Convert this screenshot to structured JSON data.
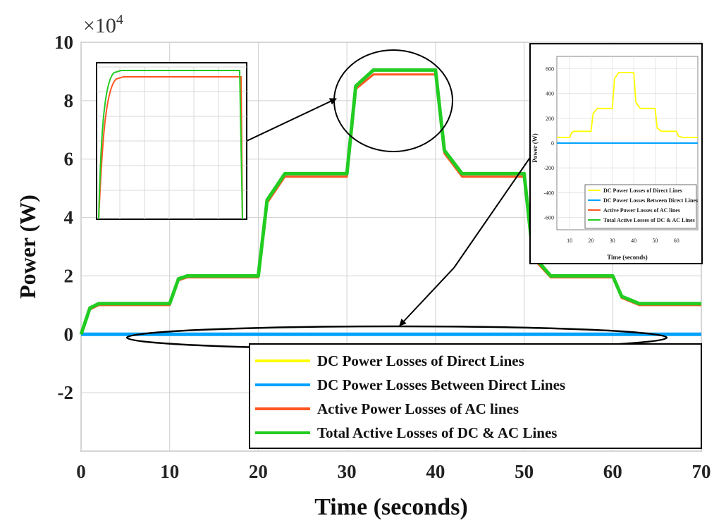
{
  "chart_data": {
    "type": "line",
    "xlabel": "Time (seconds)",
    "ylabel": "Power (W)",
    "y_multiplier": "×10",
    "y_multiplier_exp": "4",
    "xlim": [
      0,
      70
    ],
    "ylim": [
      -4,
      10
    ],
    "xticks": [
      "0",
      "10",
      "20",
      "30",
      "40",
      "50",
      "60",
      "70"
    ],
    "yticks": [
      "10",
      "8",
      "6",
      "4",
      "2",
      "0",
      "-2"
    ],
    "grid": true,
    "legend_position": "bottom-right",
    "series": [
      {
        "name": "DC Power Losses of Direct Lines",
        "color": "#ffff00",
        "x": [
          0,
          10,
          20,
          30,
          40,
          50,
          60,
          70
        ],
        "y": [
          0,
          0,
          0,
          0,
          0,
          0,
          0,
          0
        ]
      },
      {
        "name": "DC Power Losses Between Direct Lines",
        "color": "#00a2ff",
        "x": [
          0,
          10,
          20,
          30,
          40,
          50,
          60,
          70
        ],
        "y": [
          0,
          0,
          0,
          0,
          0,
          0,
          0,
          0
        ]
      },
      {
        "name": "Active Power Losses of AC lines",
        "color": "#ff5722",
        "x": [
          0,
          1,
          2,
          10,
          11,
          12,
          20,
          21,
          23,
          30,
          31,
          33,
          40,
          41,
          43,
          50,
          51,
          53,
          60,
          61,
          63,
          70
        ],
        "y": [
          0,
          0.85,
          1.0,
          1.0,
          1.85,
          1.95,
          1.95,
          4.5,
          5.4,
          5.4,
          8.4,
          8.9,
          8.9,
          6.2,
          5.4,
          5.4,
          2.6,
          1.95,
          1.95,
          1.25,
          1.0,
          1.0
        ]
      },
      {
        "name": "Total Active Losses of DC & AC Lines",
        "color": "#22cc22",
        "x": [
          0,
          1,
          2,
          10,
          11,
          12,
          20,
          21,
          23,
          30,
          31,
          33,
          40,
          41,
          43,
          50,
          51,
          53,
          60,
          61,
          63,
          70
        ],
        "y": [
          0,
          0.9,
          1.05,
          1.05,
          1.9,
          2.0,
          2.0,
          4.6,
          5.5,
          5.5,
          8.5,
          9.05,
          9.05,
          6.3,
          5.5,
          5.5,
          2.7,
          2.0,
          2.0,
          1.3,
          1.05,
          1.05
        ]
      }
    ],
    "inset_zoom": {
      "series_colors": [
        "#ff5722",
        "#22cc22"
      ]
    },
    "inset_losses": {
      "xlabel": "Time (seconds)",
      "ylabel": "Power (W)",
      "xlim": [
        4,
        70
      ],
      "ylim": [
        -700,
        700
      ],
      "xticks": [
        "10",
        "20",
        "30",
        "40",
        "50",
        "60"
      ],
      "yticks": [
        "600",
        "400",
        "200",
        "0",
        "-200",
        "-400",
        "-600"
      ],
      "legend": [
        {
          "name": "DC Power Losses of Direct Lines",
          "color": "#ffff00"
        },
        {
          "name": "DC Power Losses Between Direct Lines",
          "color": "#00a2ff"
        },
        {
          "name": "Active Power Losses of AC lines",
          "color": "#ff5722"
        },
        {
          "name": "Total Active Losses of DC & AC Lines",
          "color": "#22cc22"
        }
      ],
      "dc_direct": {
        "x": [
          4,
          10,
          11,
          12,
          20,
          21,
          23,
          30,
          31,
          33,
          40,
          41,
          43,
          50,
          51,
          53,
          60,
          61,
          63,
          70
        ],
        "y": [
          45,
          45,
          85,
          95,
          95,
          240,
          280,
          280,
          520,
          570,
          570,
          330,
          280,
          280,
          120,
          95,
          95,
          55,
          45,
          45
        ]
      },
      "dc_between": {
        "x": [
          4,
          70
        ],
        "y": [
          0,
          0
        ]
      }
    }
  }
}
